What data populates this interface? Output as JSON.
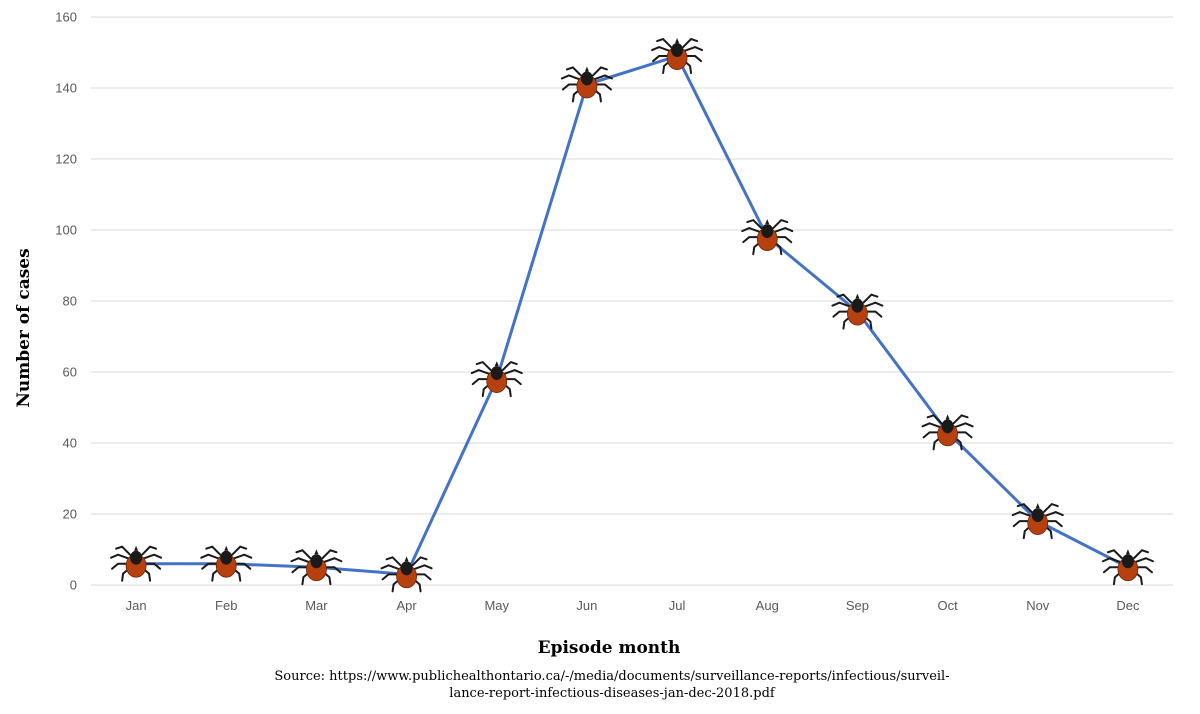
{
  "chart_data": {
    "type": "line",
    "categories": [
      "Jan",
      "Feb",
      "Mar",
      "Apr",
      "May",
      "Jun",
      "Jul",
      "Aug",
      "Sep",
      "Oct",
      "Nov",
      "Dec"
    ],
    "series": [
      {
        "name": "Number of cases",
        "values": [
          6,
          6,
          5,
          3,
          58,
          141,
          149,
          98,
          77,
          43,
          18,
          5
        ]
      }
    ],
    "xlabel": "Episode month",
    "ylabel": "Number of cases",
    "ylim": [
      0,
      160
    ],
    "yticks": [
      0,
      20,
      40,
      60,
      80,
      100,
      120,
      140,
      160
    ],
    "grid": true,
    "marker": "tick-icon"
  },
  "source": {
    "line1": "Source: https://www.publichealthontario.ca/-/media/documents/surveillance-reports/infectious/surveil-",
    "line2": "lance-report-infectious-diseases-jan-dec-2018.pdf"
  },
  "colors": {
    "line": "#4472c4",
    "grid": "#d9d9d9",
    "tick_body": "#b7410e",
    "tick_head": "#1a1a1a"
  }
}
